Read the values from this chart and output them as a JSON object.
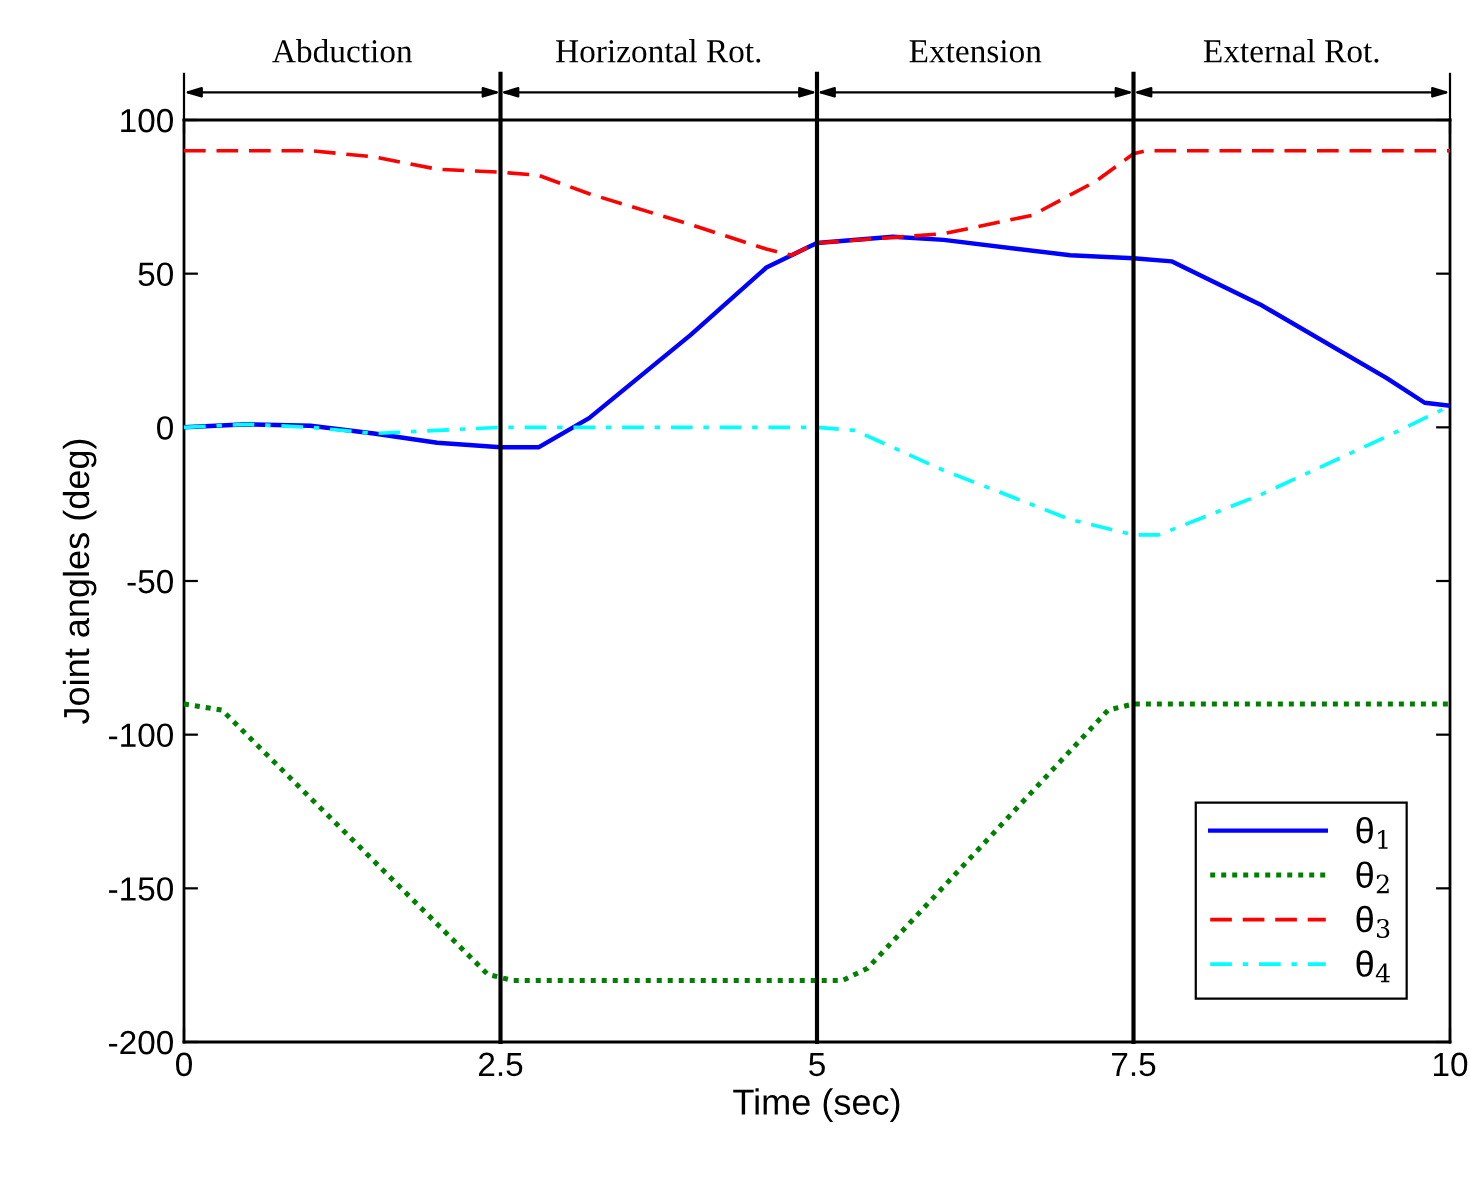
{
  "chart_data": {
    "type": "line",
    "xlabel": "Time (sec)",
    "ylabel": "Joint angles (deg)",
    "xlim": [
      0,
      10
    ],
    "xticks": [
      0,
      2.5,
      5,
      7.5,
      10
    ],
    "ylim": [
      -200,
      100
    ],
    "yticks": [
      -200,
      -150,
      -100,
      -50,
      0,
      50,
      100
    ],
    "grid": false,
    "legend": "bottom right",
    "tick_labels": "xy",
    "series": [
      {
        "name": "θ$_{1}$",
        "color": "#0000ff",
        "line_style": "solid",
        "x": [
          0,
          0.5,
          1,
          1.5,
          2,
          2.5,
          2.8,
          3.2,
          4,
          4.6,
          4.9,
          5,
          5.6,
          6,
          7,
          7.5,
          7.8,
          8.5,
          9.5,
          9.8,
          10
        ],
        "values": [
          0,
          1,
          0.5,
          -2,
          -5,
          -6.5,
          -6.5,
          3,
          30,
          52,
          58,
          60,
          62,
          61,
          56,
          55,
          54,
          40,
          16,
          8,
          7
        ]
      },
      {
        "name": "θ$_{2}$",
        "color": "#008000",
        "line_style": "dotted",
        "x": [
          0,
          0.3,
          2.4,
          2.6,
          5.2,
          5.4,
          7.3,
          7.5,
          10
        ],
        "values": [
          -90,
          -92,
          -178,
          -180,
          -180,
          -176,
          -92,
          -90,
          -90
        ]
      },
      {
        "name": "θ$_{3}$",
        "color": "#ff0000",
        "line_style": "dashed",
        "x": [
          0,
          1,
          1.5,
          2,
          2.5,
          2.8,
          3.2,
          4,
          4.6,
          4.8,
          5,
          6,
          6.7,
          7.2,
          7.5,
          7.6,
          10
        ],
        "values": [
          90,
          90,
          88,
          84,
          83,
          82,
          76,
          66,
          58,
          56,
          60,
          63,
          69,
          80,
          89,
          90,
          90
        ]
      },
      {
        "name": "θ$_{4}$",
        "color": "#00ffff",
        "line_style": "dashdot",
        "x": [
          0,
          0.5,
          1,
          1.5,
          2,
          2.5,
          5,
          5.3,
          6,
          7,
          7.5,
          7.7,
          8.5,
          9.5,
          10
        ],
        "values": [
          0,
          1,
          0,
          -2,
          -1,
          0,
          0,
          -1,
          -14,
          -30,
          -35,
          -35,
          -22,
          -3,
          7
        ]
      }
    ],
    "ref_lines": [
      {
        "axis": "x",
        "value": 2.5,
        "color": "#000000"
      },
      {
        "axis": "x",
        "value": 5,
        "color": "#000000"
      },
      {
        "axis": "x",
        "value": 7.5,
        "color": "#000000"
      }
    ],
    "annotations": [
      "Abduction",
      "Horizontal Rot.",
      "Extension",
      "External Rot."
    ]
  }
}
